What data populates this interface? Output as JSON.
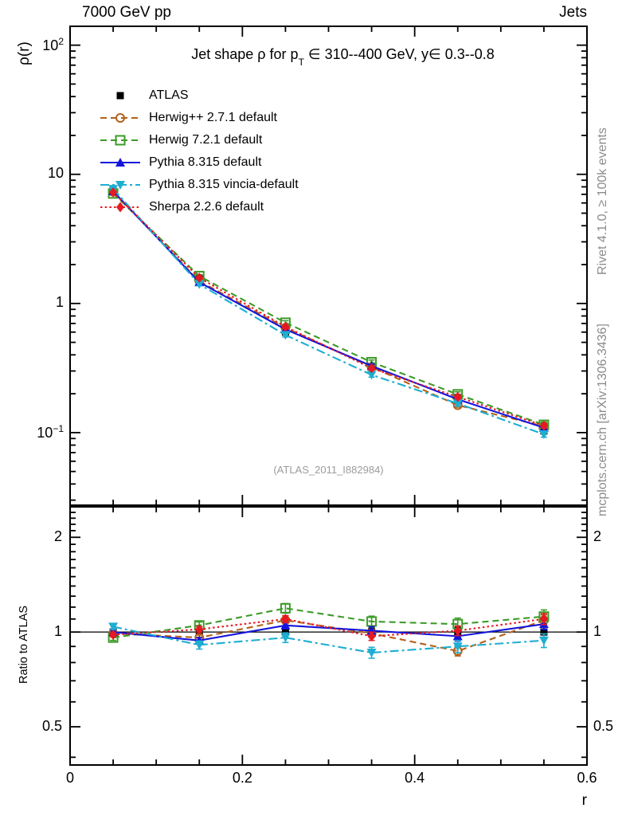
{
  "header": {
    "top_left": "7000 GeV pp",
    "top_right": "Jets"
  },
  "side_labels": {
    "right_top": "Rivet 4.1.0, ≥ 100k events",
    "right_bottom": "mcplots.cern.ch [arXiv:1306.3436]"
  },
  "watermark": "(ATLAS_2011_I882984)",
  "chart_data": {
    "type": "line",
    "title": "Jet shape ρ for p_T ∈ 310--400 GeV, y∈ 0.3--0.8",
    "title_parts": {
      "pre": "Jet shape ρ for p",
      "sub": "T",
      "post": " ∈ 310--400 GeV, y∈ 0.3--0.8"
    },
    "x_axis": {
      "label": "r",
      "min": 0,
      "max": 0.6,
      "major_ticks": [
        0,
        0.2,
        0.4,
        0.6
      ],
      "major_tick_labels": [
        "0",
        "0.2",
        "0.4",
        "0.6"
      ],
      "minor_tick_step": 0.05
    },
    "main_panel": {
      "ylabel": "ρ(r)",
      "scale": "log",
      "ymin": 0.0274,
      "ymax": 140,
      "tick_labels": [
        {
          "text": "10",
          "exp": "2",
          "value": 100
        },
        {
          "text": "10",
          "exp": "",
          "value": 10
        },
        {
          "text": "1",
          "exp": "",
          "value": 1
        },
        {
          "text": "10",
          "exp": "−1",
          "value": 0.1
        }
      ]
    },
    "ratio_panel": {
      "ylabel": "Ratio to ATLAS",
      "scale": "log",
      "ymin": 0.378,
      "ymax": 2.5,
      "reference_line": 1,
      "tick_labels": [
        {
          "text": "2",
          "value": 2
        },
        {
          "text": "1",
          "value": 1
        },
        {
          "text": "0.5",
          "value": 0.5
        }
      ],
      "minor_tick_step": 0.1
    },
    "x": [
      0.05,
      0.15,
      0.25,
      0.35,
      0.45,
      0.55
    ],
    "series": [
      {
        "name": "ATLAS",
        "color": "#000000",
        "line": "none",
        "marker": "square-filled",
        "values": [
          7.4,
          1.55,
          0.6,
          0.325,
          0.187,
          0.103
        ],
        "ratio": [
          1,
          1,
          1,
          1,
          1,
          1
        ],
        "ratio_err": [
          0.02,
          0.02,
          0.025,
          0.03,
          0.035,
          0.04
        ]
      },
      {
        "name": "Herwig++ 2.7.1 default",
        "color": "#b4611a",
        "line": "dashed",
        "marker": "circle-open",
        "values": [
          7.33,
          1.49,
          0.65,
          0.322,
          0.163,
          0.112
        ],
        "ratio": [
          0.99,
          0.96,
          1.09,
          0.99,
          0.87,
          1.09
        ],
        "ratio_err": [
          0.015,
          0.02,
          0.025,
          0.03,
          0.035,
          0.04
        ]
      },
      {
        "name": "Herwig 7.2.1 default",
        "color": "#3c9b28",
        "line": "dashed",
        "marker": "square-open",
        "values": [
          7.1,
          1.63,
          0.71,
          0.351,
          0.198,
          0.115
        ],
        "ratio": [
          0.96,
          1.05,
          1.19,
          1.08,
          1.06,
          1.12
        ],
        "ratio_err": [
          0.02,
          0.025,
          0.035,
          0.04,
          0.045,
          0.05
        ]
      },
      {
        "name": "Pythia 8.315 default",
        "color": "#1414dc",
        "line": "solid",
        "marker": "triangle-up-filled",
        "values": [
          7.4,
          1.46,
          0.63,
          0.328,
          0.181,
          0.109
        ],
        "ratio": [
          1.0,
          0.94,
          1.05,
          1.01,
          0.97,
          1.06
        ],
        "ratio_err": [
          0.015,
          0.02,
          0.025,
          0.03,
          0.035,
          0.04
        ]
      },
      {
        "name": "Pythia 8.315 vincia-default",
        "color": "#1eaed2",
        "line": "dashdot",
        "marker": "triangle-down-filled",
        "values": [
          7.7,
          1.41,
          0.57,
          0.28,
          0.168,
          0.097
        ],
        "ratio": [
          1.04,
          0.91,
          0.96,
          0.86,
          0.9,
          0.94
        ],
        "ratio_err": [
          0.02,
          0.03,
          0.035,
          0.04,
          0.045,
          0.05
        ]
      },
      {
        "name": "Sherpa 2.2.6 default",
        "color": "#e61923",
        "line": "dotted",
        "marker": "diamond-filled",
        "values": [
          7.25,
          1.58,
          0.66,
          0.315,
          0.189,
          0.113
        ],
        "ratio": [
          0.98,
          1.02,
          1.1,
          0.97,
          1.01,
          1.1
        ],
        "ratio_err": [
          0.015,
          0.02,
          0.025,
          0.03,
          0.035,
          0.04
        ]
      }
    ],
    "legend_position": "top-left-inside",
    "grid": false
  }
}
